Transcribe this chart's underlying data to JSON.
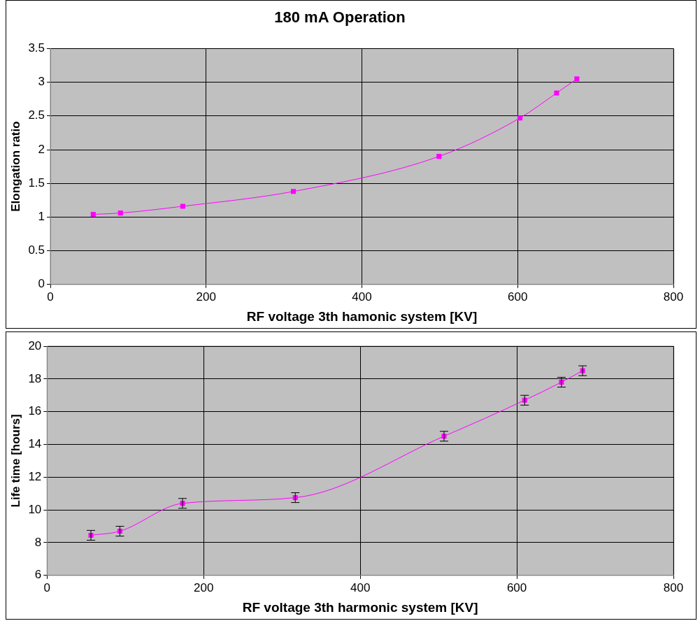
{
  "chart_data": [
    {
      "type": "line",
      "title": "180 mA Operation",
      "xlabel": "RF voltage 3th hamonic system [KV]",
      "ylabel": "Elongation ratio",
      "x": [
        55,
        90,
        170,
        312,
        499,
        603,
        650,
        676
      ],
      "series": [
        {
          "color": "#ff00ff",
          "values": [
            1.04,
            1.06,
            1.16,
            1.38,
            1.9,
            2.47,
            2.84,
            3.05
          ]
        }
      ],
      "xlim": [
        0,
        800
      ],
      "xticks": [
        0,
        200,
        400,
        600,
        800
      ],
      "ylim": [
        0,
        3.5
      ],
      "yticks": [
        0,
        0.5,
        1,
        1.5,
        2,
        2.5,
        3,
        3.5
      ],
      "grid": true,
      "marker": "square",
      "line_style": "solid"
    },
    {
      "type": "line",
      "xlabel": "RF voltage 3th harmonic system [KV]",
      "ylabel": "Life time [hours]",
      "x": [
        56,
        93,
        173,
        317,
        507,
        610,
        657,
        684
      ],
      "series": [
        {
          "color": "#ff00ff",
          "values": [
            8.45,
            8.7,
            10.4,
            10.75,
            14.5,
            16.7,
            17.8,
            18.5
          ],
          "errors": [
            0.3,
            0.3,
            0.3,
            0.3,
            0.3,
            0.3,
            0.3,
            0.3
          ]
        }
      ],
      "xlim": [
        0,
        800
      ],
      "xticks": [
        0,
        200,
        400,
        600,
        800
      ],
      "ylim": [
        6,
        20
      ],
      "yticks": [
        6,
        8,
        10,
        12,
        14,
        16,
        18,
        20
      ],
      "grid": true,
      "marker": "square",
      "line_style": "solid"
    }
  ]
}
